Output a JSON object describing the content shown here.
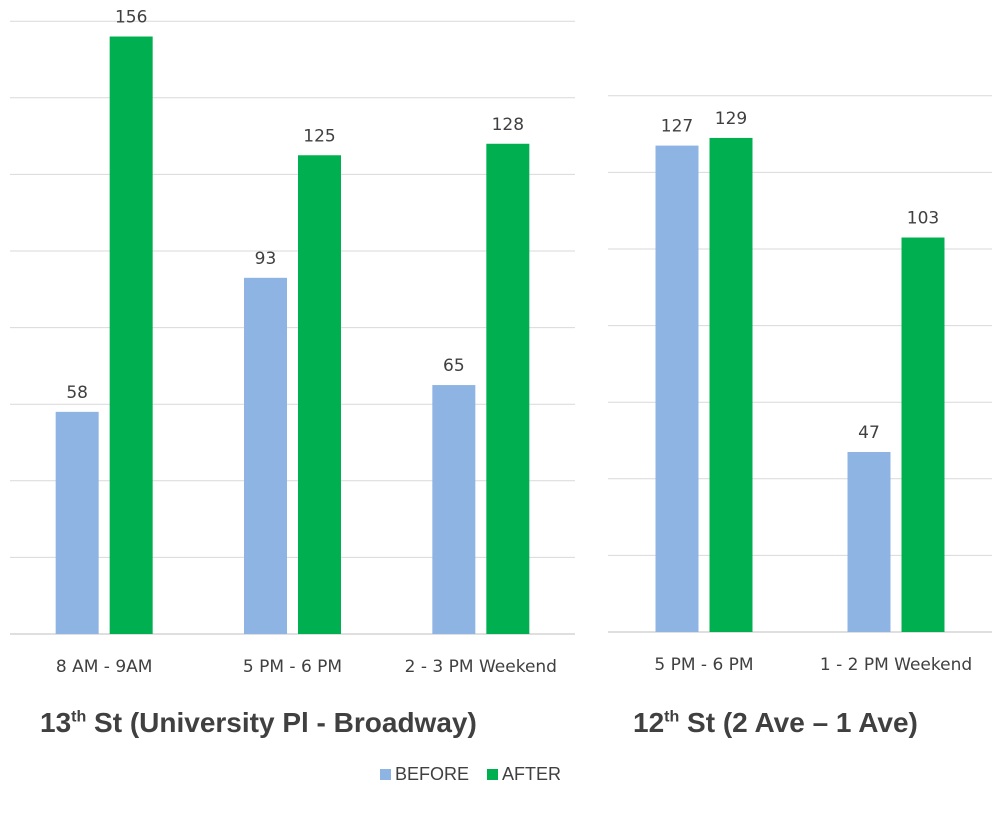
{
  "chart_data": [
    {
      "type": "bar",
      "title_base": "13",
      "title_sup": "th",
      "title_rest": " St (University Pl - Broadway)",
      "categories": [
        "8 AM - 9AM",
        "5 PM - 6 PM",
        "2 - 3 PM Weekend"
      ],
      "series": [
        {
          "name": "BEFORE",
          "values": [
            58,
            93,
            65
          ]
        },
        {
          "name": "AFTER",
          "values": [
            156,
            125,
            128
          ]
        }
      ],
      "ylim": [
        0,
        160
      ],
      "grid": true
    },
    {
      "type": "bar",
      "title_base": "12",
      "title_sup": "th",
      "title_rest": " St (2 Ave – 1 Ave)",
      "categories": [
        "5 PM - 6 PM",
        "1 - 2 PM Weekend"
      ],
      "series": [
        {
          "name": "BEFORE",
          "values": [
            127,
            47
          ]
        },
        {
          "name": "AFTER",
          "values": [
            129,
            103
          ]
        }
      ],
      "ylim": [
        0,
        140
      ],
      "grid": true
    }
  ],
  "legend": {
    "before_label": "BEFORE",
    "after_label": "AFTER"
  },
  "colors": {
    "before": "#8eb4e3",
    "after": "#00b050",
    "grid": "#d9d9d9",
    "axis": "#bfbfbf"
  }
}
